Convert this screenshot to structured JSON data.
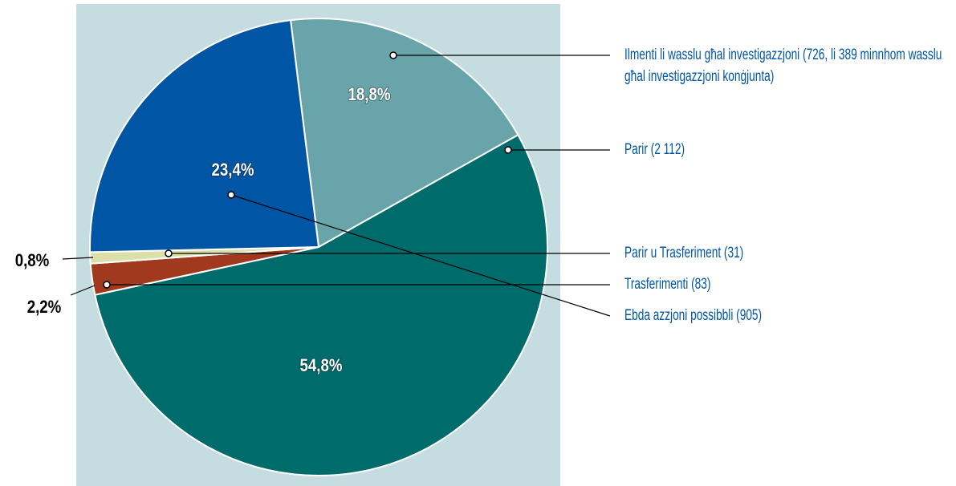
{
  "chart_data": {
    "type": "pie",
    "categories": [
      "Ilmenti li wasslu għal investigazzjoni (726, li 389 minnhom wasslu għal investigazzjoni konġjunta)",
      "Parir (2 112)",
      "Trasferimenti (83)",
      "Parir u Trasferiment (31)",
      "Ebda azzjoni possibbli (905)"
    ],
    "values": [
      18.8,
      54.8,
      2.2,
      0.8,
      23.4
    ],
    "value_labels": [
      "18,8%",
      "54,8%",
      "2,2%",
      "0,8%",
      "23,4%"
    ],
    "colors": [
      "#68a4a9",
      "#006b6b",
      "#a0391e",
      "#dbe0a8",
      "#0055a4"
    ]
  }
}
